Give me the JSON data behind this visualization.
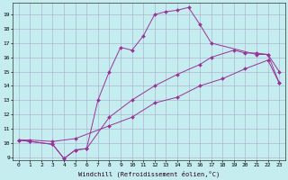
{
  "xlabel": "Windchill (Refroidissement éolien,°C)",
  "bg_color": "#c5ecee",
  "line_color": "#993399",
  "grid_color": "#aaaacc",
  "xlim": [
    -0.5,
    23.5
  ],
  "ylim": [
    8.8,
    19.8
  ],
  "yticks": [
    9,
    10,
    11,
    12,
    13,
    14,
    15,
    16,
    17,
    18,
    19
  ],
  "xticks": [
    0,
    1,
    2,
    3,
    4,
    5,
    6,
    7,
    8,
    9,
    10,
    11,
    12,
    13,
    14,
    15,
    16,
    17,
    18,
    19,
    20,
    21,
    22,
    23
  ],
  "series": [
    {
      "x": [
        0,
        1,
        3,
        4,
        5,
        6,
        7,
        8,
        9,
        10,
        11,
        12,
        13,
        14,
        15,
        16,
        17,
        21,
        22,
        23
      ],
      "y": [
        10.2,
        10.1,
        9.9,
        8.9,
        9.5,
        9.6,
        13.0,
        15.0,
        16.7,
        16.5,
        17.5,
        19.0,
        19.2,
        19.3,
        19.5,
        18.3,
        17.0,
        16.2,
        16.2,
        15.0
      ]
    },
    {
      "x": [
        0,
        1,
        3,
        4,
        5,
        6,
        8,
        10,
        12,
        14,
        16,
        17,
        19,
        20,
        21,
        22,
        23
      ],
      "y": [
        10.2,
        10.1,
        9.9,
        8.9,
        9.5,
        9.6,
        11.8,
        13.0,
        14.0,
        14.8,
        15.5,
        16.0,
        16.5,
        16.3,
        16.3,
        16.2,
        14.2
      ]
    },
    {
      "x": [
        0,
        1,
        3,
        5,
        8,
        10,
        12,
        14,
        16,
        18,
        20,
        22,
        23
      ],
      "y": [
        10.2,
        10.2,
        10.1,
        10.3,
        11.2,
        11.8,
        12.8,
        13.2,
        14.0,
        14.5,
        15.2,
        15.8,
        14.2
      ]
    }
  ]
}
